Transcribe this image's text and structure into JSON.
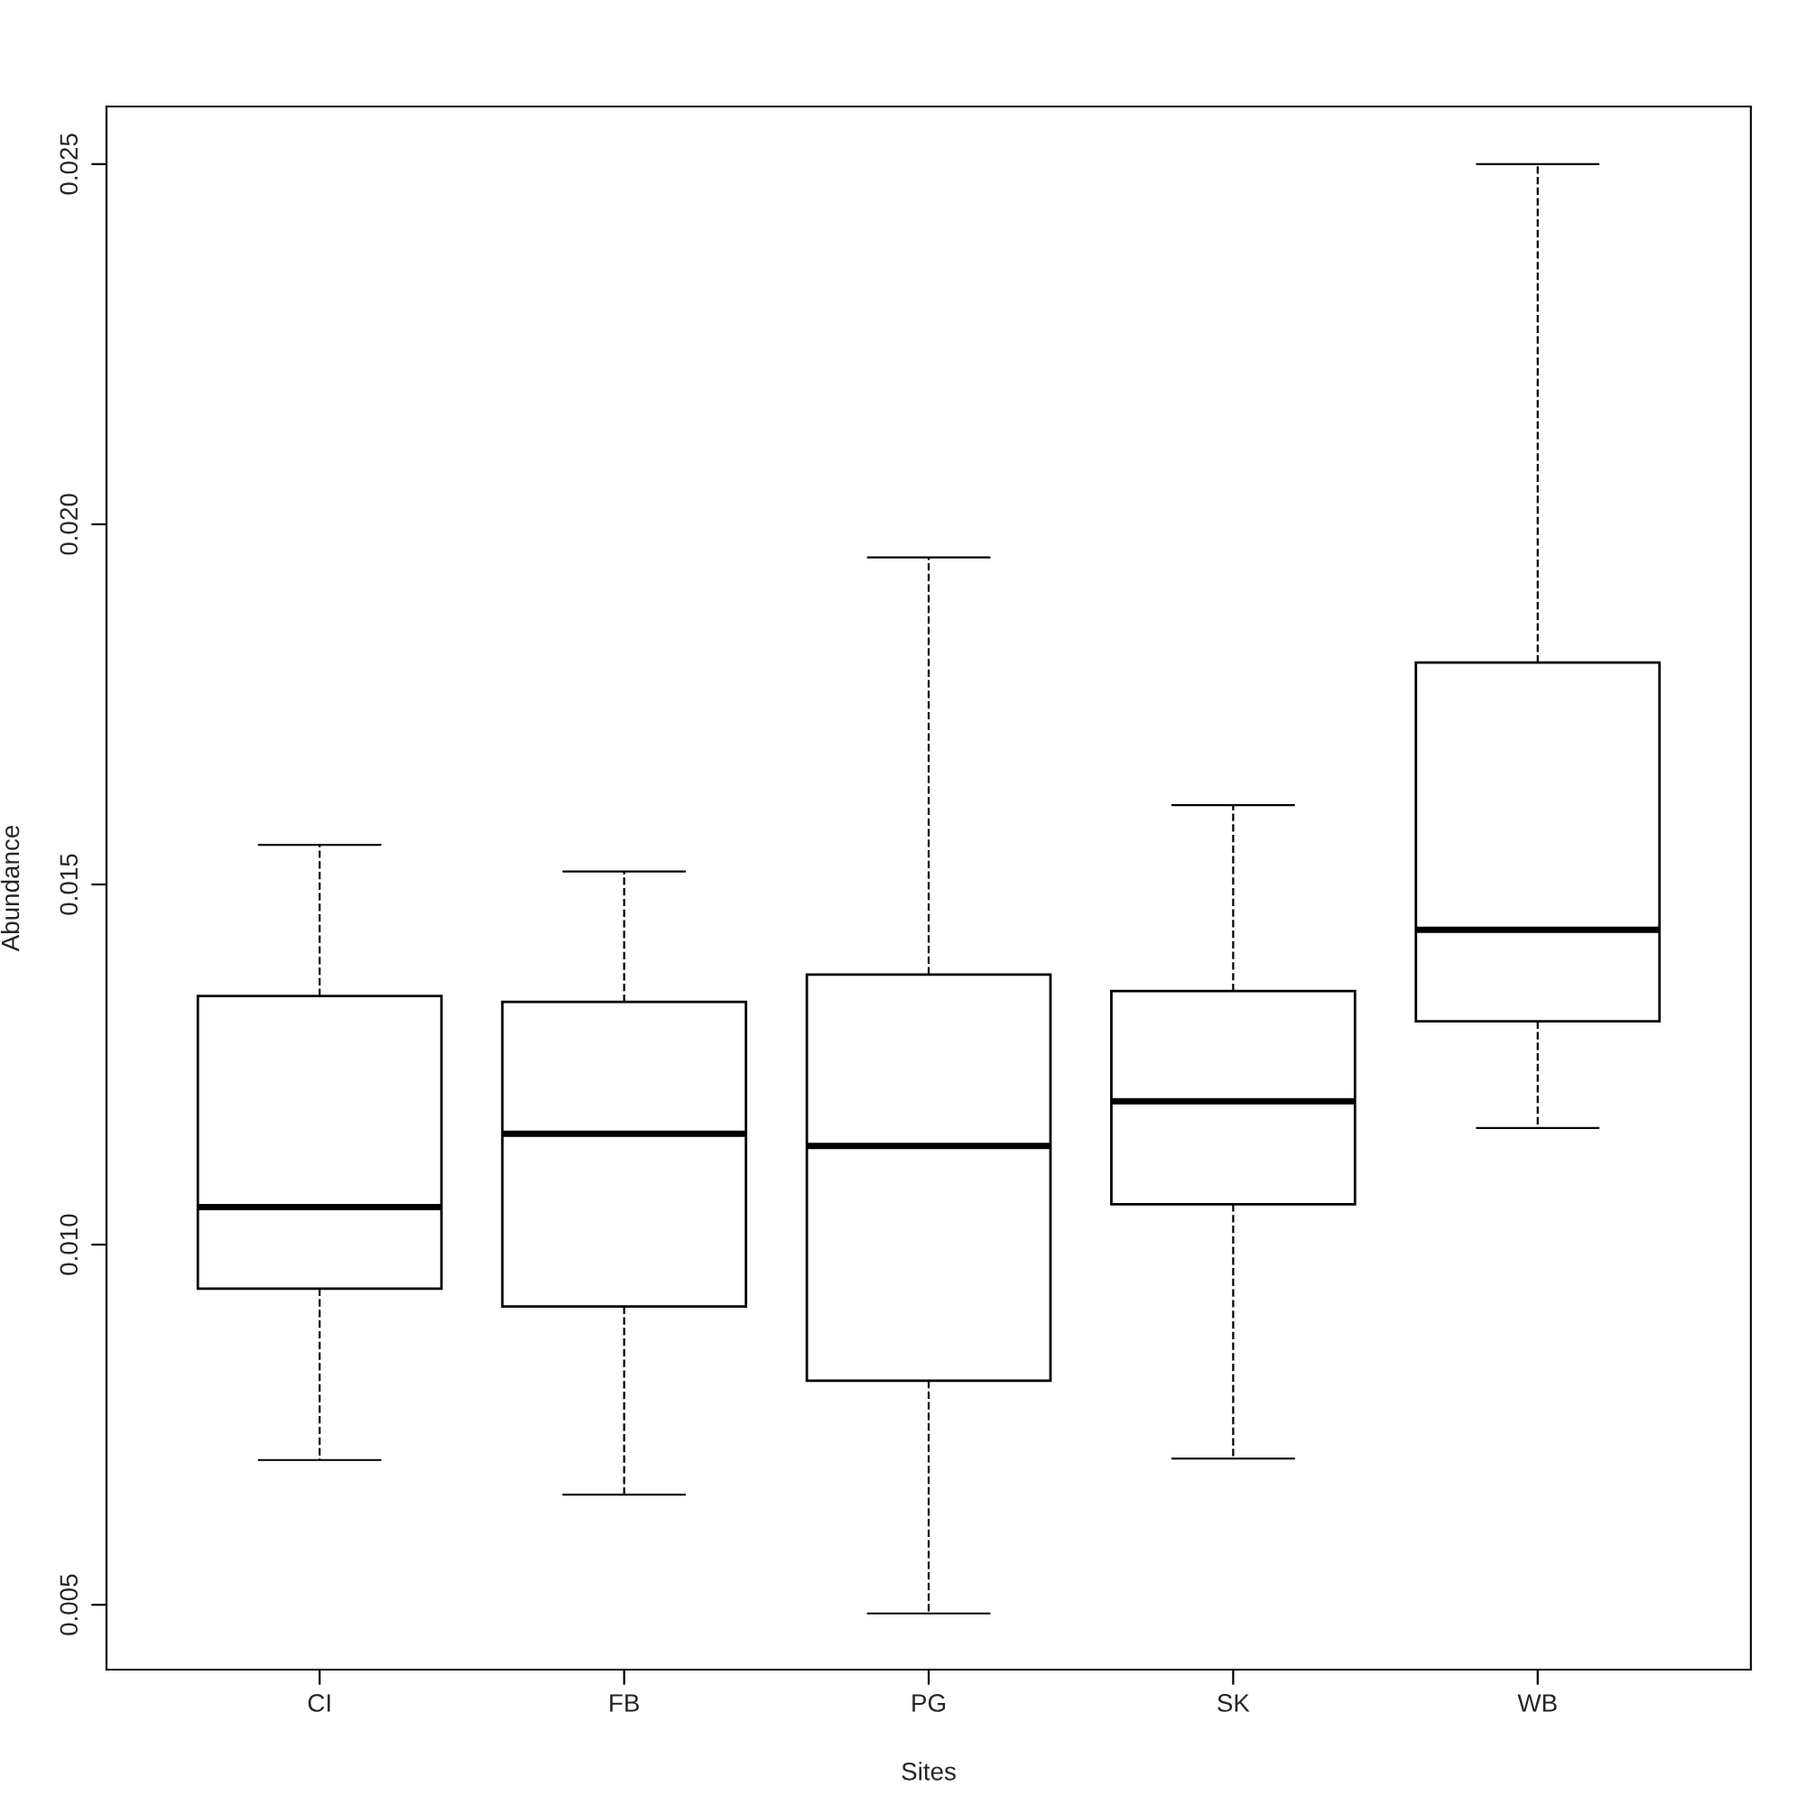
{
  "chart_data": {
    "type": "box",
    "xlabel": "Sites",
    "ylabel": "Abundance",
    "categories": [
      "CI",
      "FB",
      "PG",
      "SK",
      "WB"
    ],
    "boxes": [
      {
        "low": 0.00701,
        "q1": 0.00939,
        "median": 0.01052,
        "q3": 0.01345,
        "high": 0.01555
      },
      {
        "low": 0.00653,
        "q1": 0.00914,
        "median": 0.01154,
        "q3": 0.01337,
        "high": 0.01518
      },
      {
        "low": 0.00488,
        "q1": 0.00811,
        "median": 0.01137,
        "q3": 0.01375,
        "high": 0.01954
      },
      {
        "low": 0.00703,
        "q1": 0.01056,
        "median": 0.01199,
        "q3": 0.01352,
        "high": 0.0161
      },
      {
        "low": 0.01162,
        "q1": 0.0131,
        "median": 0.01437,
        "q3": 0.01808,
        "high": 0.025
      }
    ],
    "color": "#ffffff",
    "ylim": [
      0.0041,
      0.0258
    ],
    "yticks": [
      {
        "value": 0.005,
        "label": "0.005"
      },
      {
        "value": 0.01,
        "label": "0.010"
      },
      {
        "value": 0.015,
        "label": "0.015"
      },
      {
        "value": 0.02,
        "label": "0.020"
      },
      {
        "value": 0.025,
        "label": "0.025"
      }
    ],
    "line_style": "dashed",
    "grid": false
  }
}
